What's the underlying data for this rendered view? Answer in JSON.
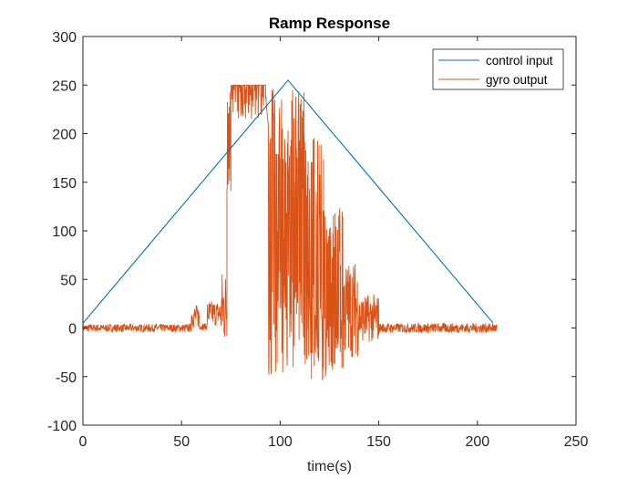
{
  "chart_data": {
    "type": "line",
    "title": "Ramp Response",
    "xlabel": "time(s)",
    "ylabel": "",
    "xlim": [
      0,
      250
    ],
    "ylim": [
      -100,
      300
    ],
    "xticks": [
      0,
      50,
      100,
      150,
      200,
      250
    ],
    "yticks": [
      -100,
      -50,
      0,
      50,
      100,
      150,
      200,
      250,
      300
    ],
    "grid": false,
    "legend_position": "top-right",
    "series": [
      {
        "name": "control input",
        "color": "#0072BD",
        "x": [
          0,
          104,
          208
        ],
        "y": [
          5,
          255,
          5
        ]
      },
      {
        "name": "gyro output",
        "color": "#D95319",
        "noise_segments": [
          {
            "t": [
              0,
              55
            ],
            "lo": -4,
            "hi": 4
          },
          {
            "t": [
              55,
              59
            ],
            "lo": 0,
            "hi": 24
          },
          {
            "t": [
              59,
              63
            ],
            "lo": -2,
            "hi": 5
          },
          {
            "t": [
              63,
              70
            ],
            "lo": 2,
            "hi": 28
          },
          {
            "t": [
              70,
              73
            ],
            "lo": -18,
            "hi": 60
          },
          {
            "t": [
              73,
              75
            ],
            "lo": 140,
            "hi": 250
          },
          {
            "t": [
              75,
              93
            ],
            "lo": 215,
            "hi": 250
          },
          {
            "t": [
              94,
              103
            ],
            "lo": -50,
            "hi": 248
          },
          {
            "t": [
              103,
              112
            ],
            "lo": -45,
            "hi": 245
          },
          {
            "t": [
              112,
              122
            ],
            "lo": -55,
            "hi": 200
          },
          {
            "t": [
              122,
              132
            ],
            "lo": -50,
            "hi": 125
          },
          {
            "t": [
              132,
              140
            ],
            "lo": -30,
            "hi": 70
          },
          {
            "t": [
              140,
              150
            ],
            "lo": -15,
            "hi": 35
          },
          {
            "t": [
              150,
              210
            ],
            "lo": -5,
            "hi": 5
          }
        ]
      }
    ]
  }
}
